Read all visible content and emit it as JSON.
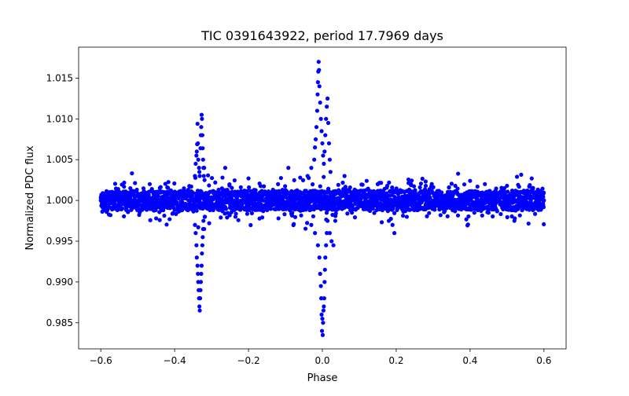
{
  "chart_data": {
    "type": "scatter",
    "title": "TIC 0391643922, period 17.7969 days",
    "xlabel": "Phase",
    "ylabel": "Normalized PDC flux",
    "xlim": [
      -0.66,
      0.66
    ],
    "ylim": [
      0.9818,
      1.0188
    ],
    "x_ticks": [
      -0.6,
      -0.4,
      -0.2,
      0.0,
      0.2,
      0.4,
      0.6
    ],
    "x_tick_labels": [
      "−0.6",
      "−0.4",
      "−0.2",
      "0.0",
      "0.2",
      "0.4",
      "0.6"
    ],
    "y_ticks": [
      0.985,
      0.99,
      0.995,
      1.0,
      1.005,
      1.01,
      1.015
    ],
    "y_tick_labels": [
      "0.985",
      "0.990",
      "0.995",
      "1.000",
      "1.005",
      "1.010",
      "1.015"
    ],
    "grid": false,
    "series": [
      {
        "name": "flux",
        "color": "#0000ff",
        "baseline": {
          "x_range": [
            -0.6,
            0.6
          ],
          "center": 1.0,
          "half_width_core": 0.0012,
          "half_width_edge": 0.0021
        },
        "points": [
          [
            -0.6,
            1.0
          ],
          [
            -0.52,
            1.0015
          ],
          [
            -0.47,
            1.0007
          ],
          [
            -0.45,
            0.9978
          ],
          [
            -0.42,
            1.0016
          ],
          [
            -0.38,
            0.9988
          ],
          [
            -0.355,
            1.0017
          ],
          [
            -0.345,
            1.003
          ],
          [
            -0.343,
            1.0045
          ],
          [
            -0.341,
            1.0055
          ],
          [
            -0.34,
            1.006
          ],
          [
            -0.339,
            1.0069
          ],
          [
            -0.338,
            1.0094
          ],
          [
            -0.337,
            1.007
          ],
          [
            -0.336,
            1.005
          ],
          [
            -0.334,
            1.004
          ],
          [
            -0.333,
            1.0035
          ],
          [
            -0.332,
            1.003
          ],
          [
            -0.33,
            1.0064
          ],
          [
            -0.329,
            1.008
          ],
          [
            -0.328,
            1.009
          ],
          [
            -0.327,
            1.0105
          ],
          [
            -0.326,
            1.01
          ],
          [
            -0.325,
            1.008
          ],
          [
            -0.324,
            1.0064
          ],
          [
            -0.323,
            1.005
          ],
          [
            -0.322,
            1.004
          ],
          [
            -0.321,
            1.003
          ],
          [
            -0.32,
            1.004
          ],
          [
            -0.319,
            1.0025
          ],
          [
            -0.345,
            0.997
          ],
          [
            -0.343,
            0.996
          ],
          [
            -0.341,
            0.9945
          ],
          [
            -0.34,
            0.993
          ],
          [
            -0.338,
            0.992
          ],
          [
            -0.337,
            0.991
          ],
          [
            -0.336,
            0.99
          ],
          [
            -0.335,
            0.989
          ],
          [
            -0.334,
            0.988
          ],
          [
            -0.333,
            0.987
          ],
          [
            -0.332,
            0.9865
          ],
          [
            -0.331,
            0.988
          ],
          [
            -0.33,
            0.989
          ],
          [
            -0.329,
            0.99
          ],
          [
            -0.328,
            0.991
          ],
          [
            -0.327,
            0.992
          ],
          [
            -0.326,
            0.9935
          ],
          [
            -0.325,
            0.9945
          ],
          [
            -0.324,
            0.9955
          ],
          [
            -0.323,
            0.9965
          ],
          [
            -0.322,
            0.9975
          ],
          [
            -0.32,
            0.9965
          ],
          [
            -0.318,
            0.998
          ],
          [
            -0.29,
            1.0022
          ],
          [
            -0.263,
            1.004
          ],
          [
            -0.2,
            1.0027
          ],
          [
            -0.16,
            0.9987
          ],
          [
            -0.12,
            1.002
          ],
          [
            -0.092,
            1.004
          ],
          [
            -0.06,
            1.0028
          ],
          [
            -0.04,
            1.003
          ],
          [
            -0.03,
            1.004
          ],
          [
            -0.022,
            1.005
          ],
          [
            -0.02,
            1.0065
          ],
          [
            -0.018,
            1.0075
          ],
          [
            -0.016,
            1.009
          ],
          [
            -0.014,
            1.011
          ],
          [
            -0.013,
            1.013
          ],
          [
            -0.012,
            1.0145
          ],
          [
            -0.011,
            1.0158
          ],
          [
            -0.01,
            1.017
          ],
          [
            -0.009,
            1.016
          ],
          [
            -0.008,
            1.014
          ],
          [
            -0.006,
            1.012
          ],
          [
            -0.004,
            1.01
          ],
          [
            -0.002,
            1.0085
          ],
          [
            0.0,
            1.007
          ],
          [
            0.002,
            1.0055
          ],
          [
            0.004,
            1.0045
          ],
          [
            0.006,
            1.006
          ],
          [
            0.008,
            1.008
          ],
          [
            0.01,
            1.01
          ],
          [
            0.012,
            1.0115
          ],
          [
            0.014,
            1.0125
          ],
          [
            0.016,
            1.0095
          ],
          [
            0.018,
            1.007
          ],
          [
            0.02,
            1.005
          ],
          [
            0.022,
            1.0035
          ],
          [
            -0.03,
            0.997
          ],
          [
            -0.02,
            0.996
          ],
          [
            -0.012,
            0.9945
          ],
          [
            -0.008,
            0.993
          ],
          [
            -0.006,
            0.991
          ],
          [
            -0.004,
            0.9895
          ],
          [
            -0.003,
            0.988
          ],
          [
            -0.002,
            0.986
          ],
          [
            -0.001,
            0.984
          ],
          [
            0.0,
            0.9855
          ],
          [
            0.001,
            0.9835
          ],
          [
            0.002,
            0.985
          ],
          [
            0.003,
            0.9865
          ],
          [
            0.004,
            0.987
          ],
          [
            0.005,
            0.988
          ],
          [
            0.006,
            0.99
          ],
          [
            0.007,
            0.9915
          ],
          [
            0.008,
            0.993
          ],
          [
            0.01,
            0.9945
          ],
          [
            0.012,
            0.996
          ],
          [
            0.014,
            0.9975
          ],
          [
            0.02,
            0.996
          ],
          [
            0.025,
            0.995
          ],
          [
            0.03,
            0.9945
          ],
          [
            0.035,
            0.9975
          ],
          [
            0.06,
            1.003
          ],
          [
            0.08,
            0.9985
          ],
          [
            0.12,
            1.0024
          ],
          [
            0.15,
            1.002
          ],
          [
            0.18,
            0.9975
          ],
          [
            0.19,
            0.997
          ],
          [
            0.195,
            0.996
          ],
          [
            0.24,
            1.002
          ],
          [
            0.28,
            1.0018
          ],
          [
            0.32,
            0.9982
          ],
          [
            0.36,
            1.0018
          ],
          [
            0.4,
            1.0024
          ],
          [
            0.42,
            1.0017
          ],
          [
            0.45,
            0.9985
          ],
          [
            0.5,
            1.0018
          ],
          [
            0.52,
            0.9975
          ],
          [
            0.527,
            1.0029
          ],
          [
            0.56,
            1.0017
          ],
          [
            0.6,
            1.0
          ]
        ]
      }
    ]
  }
}
